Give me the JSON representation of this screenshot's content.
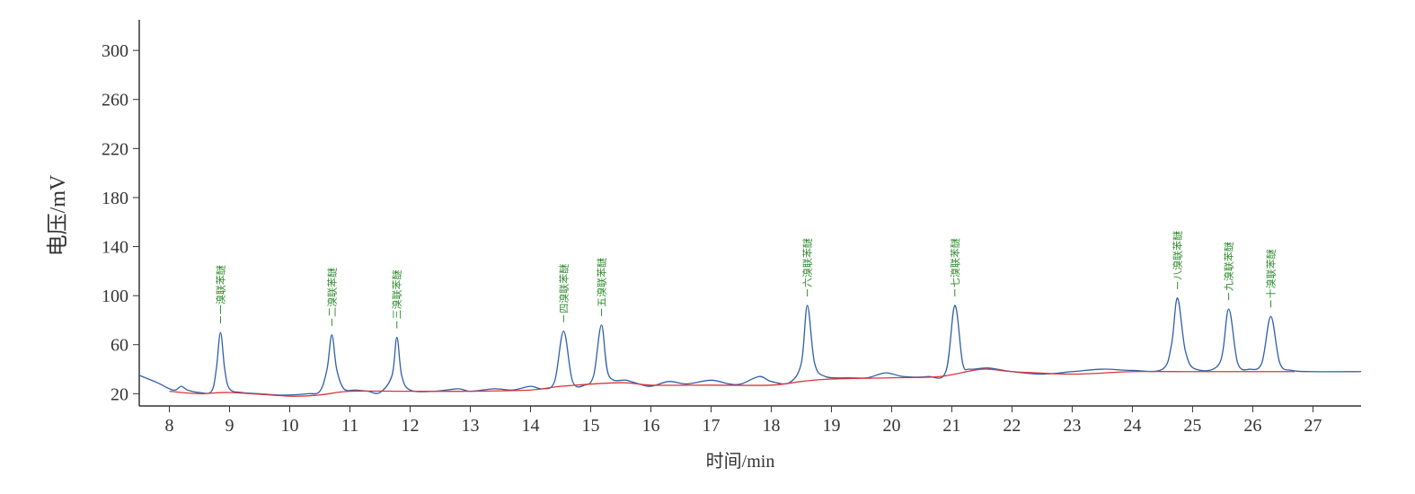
{
  "chart_data": {
    "type": "line",
    "xlabel": "时间/min",
    "ylabel": "电压/mV",
    "xlim": [
      7.5,
      27.8
    ],
    "xticks": [
      8,
      9,
      10,
      11,
      12,
      13,
      14,
      15,
      16,
      17,
      18,
      19,
      20,
      21,
      22,
      23,
      24,
      25,
      26,
      27
    ],
    "ylim": [
      10,
      325
    ],
    "yticks": [
      20,
      60,
      100,
      140,
      180,
      220,
      260,
      300
    ],
    "series": [
      {
        "color": "#2f5fa8",
        "x": [
          7.5,
          7.8,
          8.0,
          8.1,
          8.2,
          8.3,
          8.5,
          8.7,
          8.78,
          8.85,
          8.92,
          9.0,
          9.2,
          9.5,
          9.8,
          10.0,
          10.3,
          10.5,
          10.62,
          10.7,
          10.78,
          10.9,
          11.1,
          11.3,
          11.5,
          11.7,
          11.78,
          11.86,
          12.0,
          12.4,
          12.8,
          13.0,
          13.4,
          13.7,
          14.0,
          14.2,
          14.4,
          14.55,
          14.7,
          14.9,
          15.05,
          15.18,
          15.3,
          15.6,
          15.8,
          16.0,
          16.3,
          16.6,
          17.0,
          17.3,
          17.5,
          17.8,
          18.0,
          18.3,
          18.5,
          18.6,
          18.72,
          18.9,
          19.3,
          19.6,
          19.9,
          20.2,
          20.6,
          20.9,
          21.05,
          21.18,
          21.3,
          21.6,
          22.0,
          22.5,
          23.0,
          23.5,
          24.0,
          24.5,
          24.65,
          24.75,
          24.88,
          25.05,
          25.45,
          25.6,
          25.75,
          25.95,
          26.15,
          26.3,
          26.45,
          26.65,
          27.0,
          27.8
        ],
        "values": [
          35,
          29,
          24,
          23,
          26,
          23,
          21,
          22,
          40,
          70,
          40,
          24,
          21,
          20,
          19,
          19,
          20,
          22,
          40,
          68,
          40,
          24,
          23,
          22,
          21,
          35,
          66,
          35,
          23,
          22,
          24,
          22,
          24,
          23,
          26,
          24,
          30,
          71,
          30,
          27,
          35,
          76,
          35,
          31,
          28,
          26,
          30,
          28,
          31,
          28,
          28,
          34,
          30,
          29,
          45,
          92,
          45,
          34,
          33,
          33,
          37,
          34,
          34,
          38,
          92,
          45,
          40,
          41,
          38,
          36,
          38,
          40,
          39,
          40,
          60,
          98,
          55,
          40,
          45,
          89,
          45,
          40,
          45,
          83,
          45,
          39,
          38,
          38
        ]
      },
      {
        "color": "#d9363e",
        "x": [
          8.0,
          8.5,
          9.0,
          10.0,
          10.5,
          11.0,
          12.0,
          13.0,
          14.0,
          14.5,
          15.5,
          16.0,
          17.0,
          18.0,
          18.5,
          19.0,
          20.0,
          20.8,
          21.5,
          22.0,
          23.0,
          24.0,
          25.0,
          26.0,
          26.7
        ],
        "values": [
          22,
          20,
          21,
          18,
          19,
          22,
          22,
          22,
          23,
          26,
          29,
          27,
          27,
          27,
          30,
          32,
          33,
          34,
          40,
          38,
          36,
          38,
          38,
          38,
          38
        ]
      }
    ],
    "annotations": [
      {
        "text": "一溴联苯醚",
        "x": 8.85,
        "y": 70
      },
      {
        "text": "二溴联苯醚",
        "x": 10.7,
        "y": 68
      },
      {
        "text": "三溴联苯醚",
        "x": 11.78,
        "y": 66
      },
      {
        "text": "四溴联苯醚",
        "x": 14.55,
        "y": 71
      },
      {
        "text": "五溴联苯醚",
        "x": 15.18,
        "y": 76
      },
      {
        "text": "六溴联苯醚",
        "x": 18.6,
        "y": 92
      },
      {
        "text": "七溴联苯醚",
        "x": 21.05,
        "y": 92
      },
      {
        "text": "八溴联苯醚",
        "x": 24.75,
        "y": 98
      },
      {
        "text": "九溴联苯醚",
        "x": 25.6,
        "y": 89
      },
      {
        "text": "十溴联苯醚",
        "x": 26.3,
        "y": 83
      }
    ]
  }
}
